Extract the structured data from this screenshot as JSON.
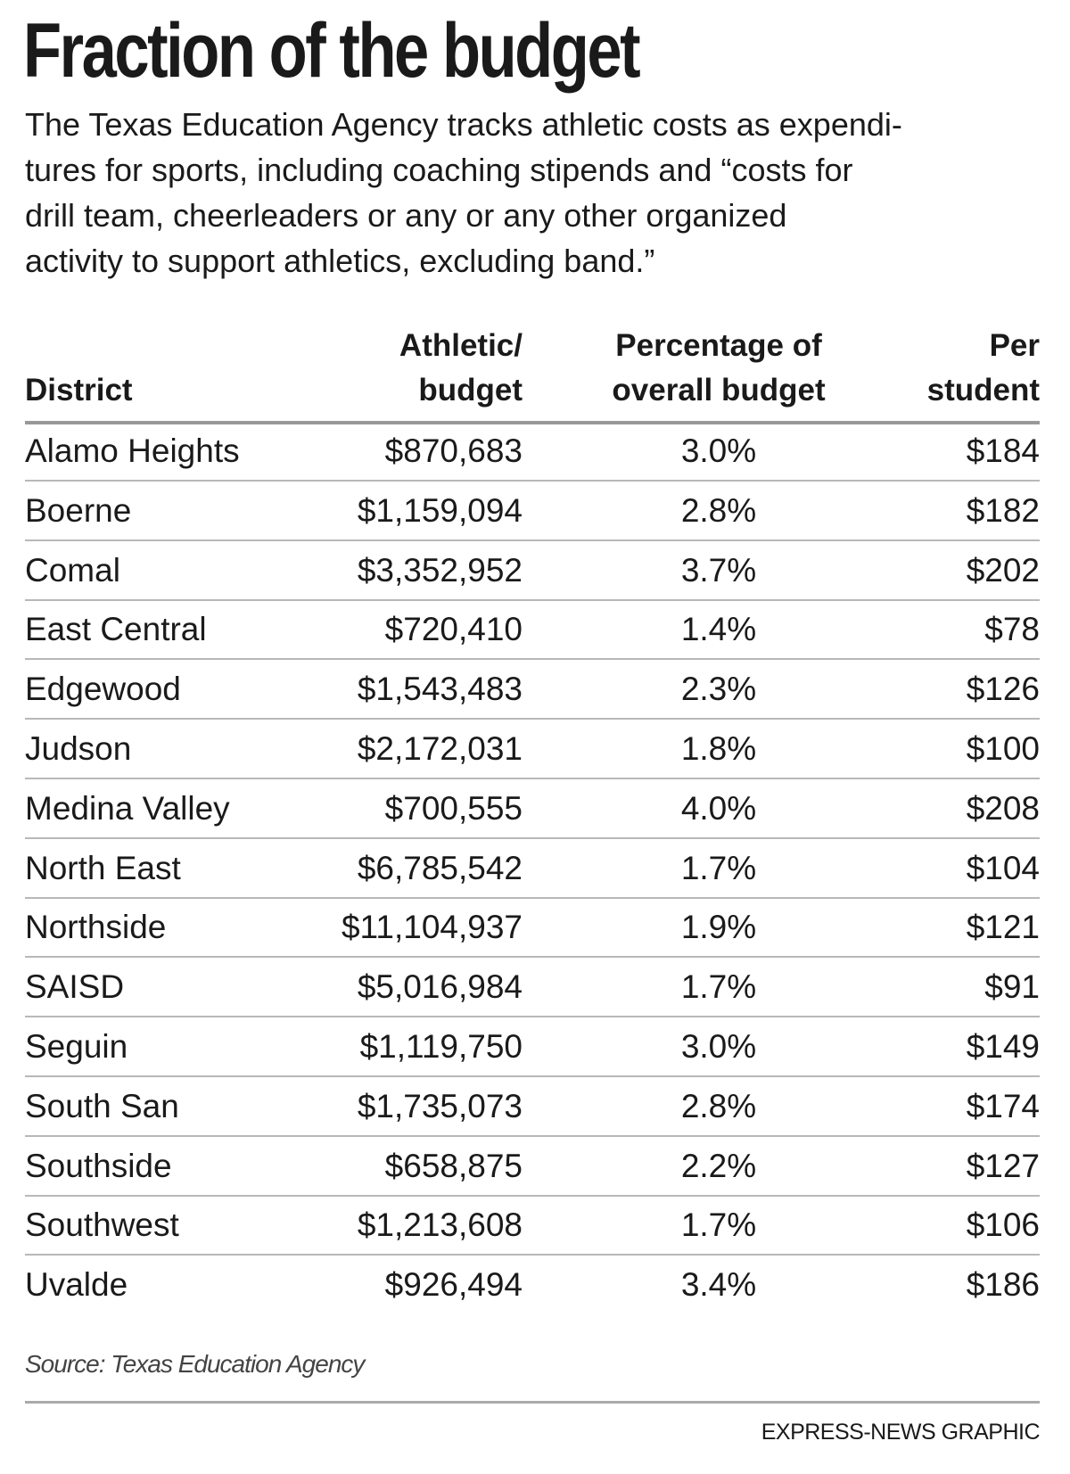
{
  "header": {
    "title": "Fraction of the budget",
    "description": [
      "The Texas Education Agency tracks athletic costs as expendi-",
      "tures for sports, including coaching stipends and “costs for",
      "drill team, cheerleaders or any or any other organized",
      "activity to support athletics, excluding band.”"
    ]
  },
  "table": {
    "columns": [
      [
        "District"
      ],
      [
        "Athletic/",
        "budget"
      ],
      [
        "Percentage of",
        "overall budget"
      ],
      [
        "Per",
        "student"
      ]
    ],
    "rows": [
      [
        "Alamo Heights",
        "$870,683",
        "3.0%",
        "$184"
      ],
      [
        "Boerne",
        "$1,159,094",
        "2.8%",
        "$182"
      ],
      [
        "Comal",
        "$3,352,952",
        "3.7%",
        "$202"
      ],
      [
        "East Central",
        "$720,410",
        "1.4%",
        "$78"
      ],
      [
        "Edgewood",
        "$1,543,483",
        "2.3%",
        "$126"
      ],
      [
        "Judson",
        "$2,172,031",
        "1.8%",
        "$100"
      ],
      [
        "Medina Valley",
        "$700,555",
        "4.0%",
        "$208"
      ],
      [
        "North East",
        "$6,785,542",
        "1.7%",
        "$104"
      ],
      [
        "Northside",
        "$11,104,937",
        "1.9%",
        "$121"
      ],
      [
        "SAISD",
        "$5,016,984",
        "1.7%",
        "$91"
      ],
      [
        "Seguin",
        "$1,119,750",
        "3.0%",
        "$149"
      ],
      [
        "South San",
        "$1,735,073",
        "2.8%",
        "$174"
      ],
      [
        "Southside",
        "$658,875",
        "2.2%",
        "$127"
      ],
      [
        "Southwest",
        "$1,213,608",
        "1.7%",
        "$106"
      ],
      [
        "Uvalde",
        "$926,494",
        "3.4%",
        "$186"
      ]
    ]
  },
  "footer": {
    "source": "Source: Texas Education Agency",
    "credit": "EXPRESS-NEWS GRAPHIC"
  }
}
